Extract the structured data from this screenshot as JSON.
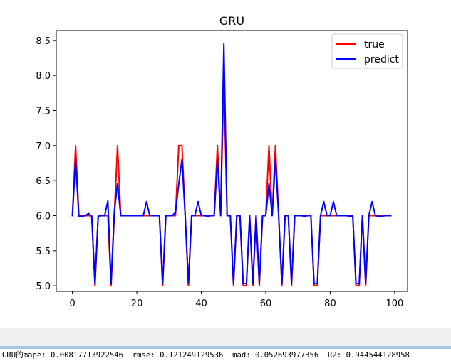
{
  "chart_data": {
    "type": "line",
    "title": "GRU",
    "xlabel": "",
    "ylabel": "",
    "xlim": [
      -5,
      104
    ],
    "ylim": [
      4.92,
      8.64
    ],
    "xticks": [
      0,
      20,
      40,
      60,
      80,
      100
    ],
    "xtick_labels": [
      "0",
      "20",
      "40",
      "60",
      "80",
      "100"
    ],
    "yticks": [
      5.0,
      5.5,
      6.0,
      6.5,
      7.0,
      7.5,
      8.0,
      8.5
    ],
    "ytick_labels": [
      "5.0",
      "5.5",
      "6.0",
      "6.5",
      "7.0",
      "7.5",
      "8.0",
      "8.5"
    ],
    "grid": false,
    "legend_position": "top-right",
    "x": [
      0,
      1,
      2,
      3,
      4,
      5,
      6,
      7,
      8,
      9,
      10,
      11,
      12,
      13,
      14,
      15,
      16,
      17,
      18,
      19,
      20,
      21,
      22,
      23,
      24,
      25,
      26,
      27,
      28,
      29,
      30,
      31,
      32,
      33,
      34,
      35,
      36,
      37,
      38,
      39,
      40,
      41,
      42,
      43,
      44,
      45,
      46,
      47,
      48,
      49,
      50,
      51,
      52,
      53,
      54,
      55,
      56,
      57,
      58,
      59,
      60,
      61,
      62,
      63,
      64,
      65,
      66,
      67,
      68,
      69,
      70,
      71,
      72,
      73,
      74,
      75,
      76,
      77,
      78,
      79,
      80,
      81,
      82,
      83,
      84,
      85,
      86,
      87,
      88,
      89,
      90,
      91,
      92,
      93,
      94,
      95,
      96,
      97,
      98,
      99
    ],
    "series": [
      {
        "name": "true",
        "color": "#ff0000",
        "values": [
          6,
          7,
          6,
          6,
          6,
          6,
          6,
          5,
          6,
          6,
          6,
          6,
          5,
          6,
          7,
          6,
          6,
          6,
          6,
          6,
          6,
          6,
          6,
          6,
          6,
          6,
          6,
          6,
          5,
          6,
          6,
          6,
          6,
          7,
          7,
          6,
          5,
          6,
          6,
          6,
          6,
          6,
          6,
          6,
          6,
          7,
          6,
          8,
          6,
          6,
          5,
          6,
          6,
          5,
          5,
          6,
          5,
          6,
          5,
          6,
          6,
          7,
          6,
          7,
          6,
          5,
          6,
          6,
          5,
          6,
          6,
          6,
          6,
          6,
          6,
          5,
          5,
          6,
          6,
          6,
          6,
          6,
          6,
          6,
          6,
          6,
          6,
          6,
          5,
          5,
          6,
          5,
          6,
          6,
          6,
          6,
          6,
          6,
          6,
          6
        ]
      },
      {
        "name": "predict",
        "color": "#0000ff",
        "values": [
          5.99,
          6.8,
          5.99,
          5.99,
          6.0,
          6.03,
          5.99,
          5.03,
          5.99,
          6.0,
          6.0,
          6.21,
          5.03,
          6.05,
          6.46,
          6.0,
          6.0,
          6.0,
          6.0,
          6.0,
          6.0,
          6.0,
          6.0,
          6.2,
          6.0,
          6.0,
          6.0,
          6.0,
          5.03,
          6.0,
          6.0,
          6.0,
          6.05,
          6.45,
          6.8,
          6.0,
          5.03,
          6.0,
          6.0,
          6.2,
          6.0,
          6.0,
          5.99,
          6.0,
          6.0,
          6.8,
          6.0,
          8.45,
          6.0,
          6.0,
          5.03,
          6.0,
          6.0,
          5.03,
          5.03,
          6.0,
          5.03,
          6.0,
          5.03,
          6.0,
          6.0,
          6.46,
          6.0,
          6.8,
          6.0,
          5.03,
          6.0,
          6.0,
          5.03,
          6.0,
          6.0,
          6.0,
          5.99,
          6.0,
          6.0,
          5.03,
          5.03,
          6.0,
          6.2,
          6.0,
          6.0,
          6.2,
          6.0,
          6.0,
          6.0,
          6.0,
          5.99,
          6.0,
          5.03,
          5.03,
          6.0,
          5.03,
          6.0,
          6.2,
          6.0,
          5.99,
          5.99,
          6.0,
          6.0,
          6.0
        ]
      }
    ]
  },
  "console": {
    "text": "GRU的mape: 0.00817713922546  rmse: 0.121249129536  mad: 0.052693977356  R2: 0.944544128958"
  }
}
